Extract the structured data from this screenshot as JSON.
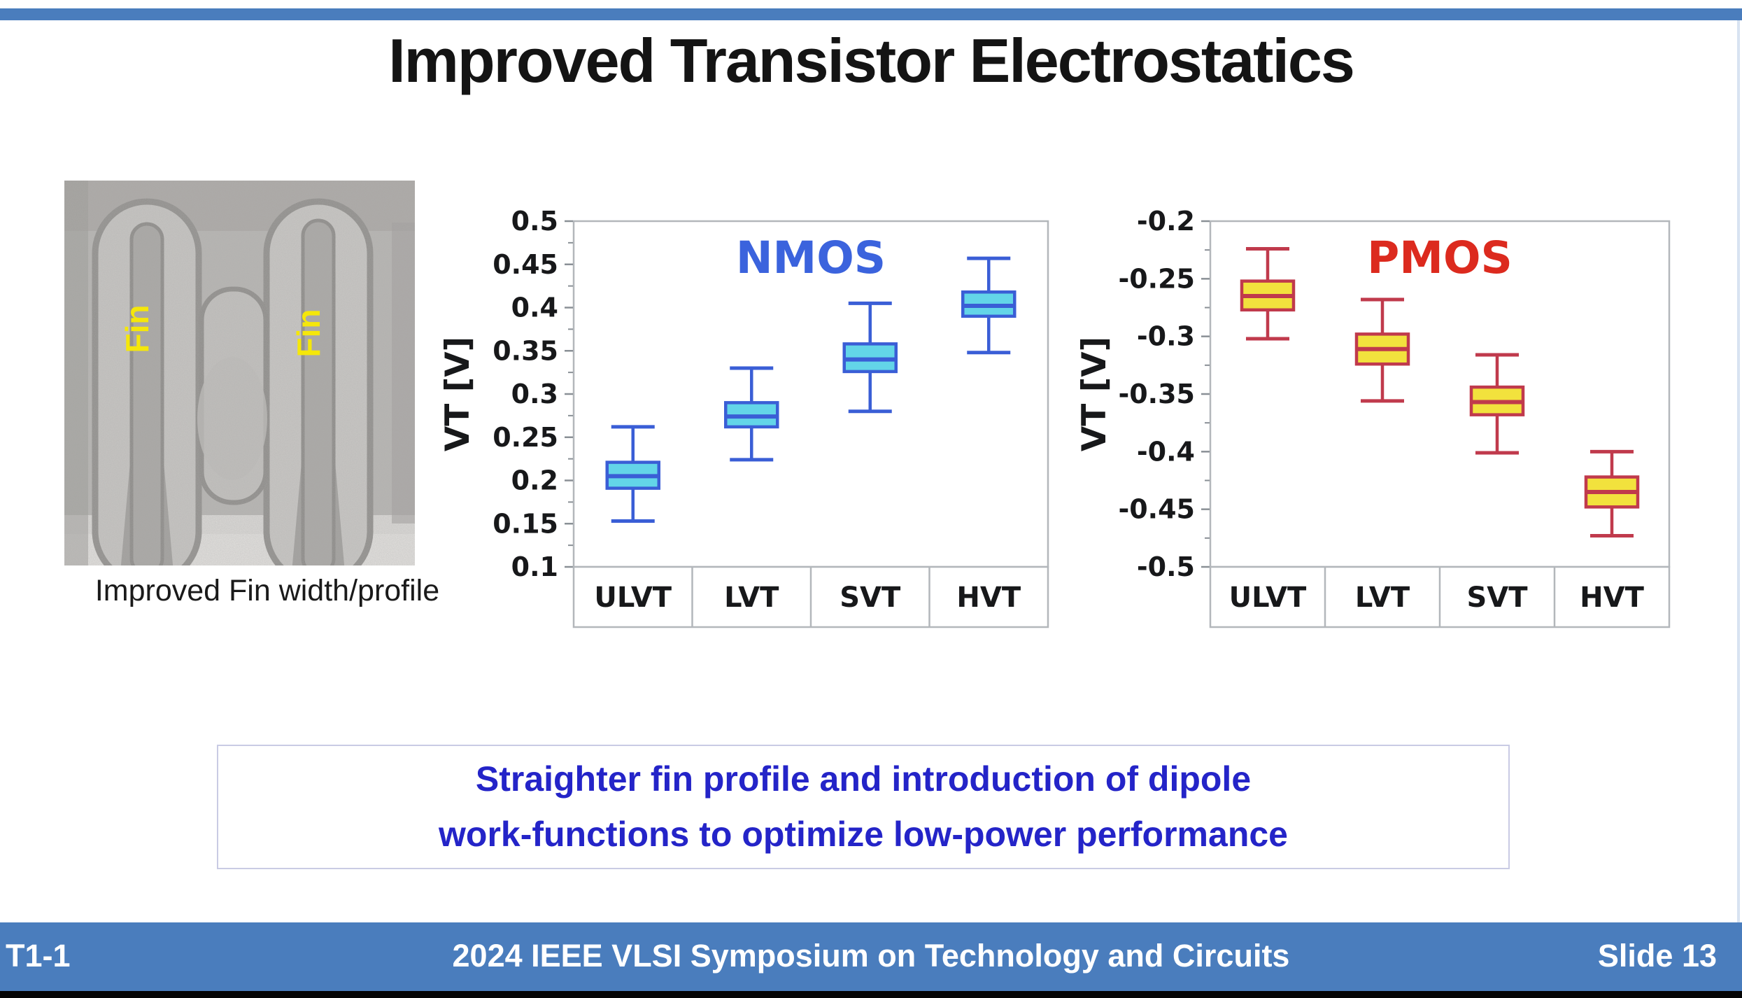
{
  "slide": {
    "title": "Improved Transistor Electrostatics",
    "footer": {
      "left": "T1-1",
      "center": "2024 IEEE VLSI Symposium on Technology and Circuits",
      "right": "Slide 13"
    },
    "message": {
      "line1": "Straighter fin profile and introduction of dipole",
      "line2": "work-functions to optimize low-power performance"
    }
  },
  "fin_figure": {
    "caption": "Improved Fin width/profile",
    "labels": [
      "Fin",
      "Fin"
    ]
  },
  "colors": {
    "accent_blue": "#4a7dbd",
    "bottom_strip": "#050505",
    "title_text": "#141414",
    "caption_text": "#1a1a1a",
    "message_text": "#2424c8",
    "message_border": "#c9cbe4",
    "fin_label_yellow": "#f5e70a",
    "nmos_box_fill": "#63d5e8",
    "nmos_box_stroke": "#3a5ed6",
    "nmos_title": "#3b63dd",
    "pmos_box_fill": "#f2e23d",
    "pmos_box_stroke": "#c03a4c",
    "pmos_title": "#dc2a1e",
    "chart_frame_gray": "#b3b7bb",
    "tick_text": "#17181a"
  },
  "chart_data": [
    {
      "type": "box",
      "title": "NMOS",
      "title_color": "#3b63dd",
      "ylabel": "VT [V]",
      "xlabel": "",
      "categories": [
        "ULVT",
        "LVT",
        "SVT",
        "HVT"
      ],
      "ylim": [
        0.1,
        0.5
      ],
      "grid": false,
      "legend": "none",
      "box_fill": "#63d5e8",
      "box_stroke": "#3a5ed6",
      "yticks": [
        {
          "value": 0.5,
          "label": "0.5"
        },
        {
          "value": 0.45,
          "label": "0.45"
        },
        {
          "value": 0.4,
          "label": "0.4"
        },
        {
          "value": 0.35,
          "label": "0.35"
        },
        {
          "value": 0.3,
          "label": "0.3"
        },
        {
          "value": 0.25,
          "label": "0.25"
        },
        {
          "value": 0.2,
          "label": "0.2"
        },
        {
          "value": 0.15,
          "label": "0.15"
        },
        {
          "value": 0.1,
          "label": "0.1"
        }
      ],
      "boxes": [
        {
          "category": "ULVT",
          "whisker_low": 0.153,
          "q1": 0.191,
          "median": 0.205,
          "q3": 0.221,
          "whisker_high": 0.262
        },
        {
          "category": "LVT",
          "whisker_low": 0.224,
          "q1": 0.262,
          "median": 0.274,
          "q3": 0.29,
          "whisker_high": 0.33
        },
        {
          "category": "SVT",
          "whisker_low": 0.28,
          "q1": 0.326,
          "median": 0.34,
          "q3": 0.358,
          "whisker_high": 0.405
        },
        {
          "category": "HVT",
          "whisker_low": 0.348,
          "q1": 0.39,
          "median": 0.402,
          "q3": 0.418,
          "whisker_high": 0.457
        }
      ]
    },
    {
      "type": "box",
      "title": "PMOS",
      "title_color": "#dc2a1e",
      "ylabel": "VT [V]",
      "xlabel": "",
      "categories": [
        "ULVT",
        "LVT",
        "SVT",
        "HVT"
      ],
      "ylim": [
        -0.5,
        -0.2
      ],
      "grid": false,
      "legend": "none",
      "box_fill": "#f2e23d",
      "box_stroke": "#c03a4c",
      "yticks": [
        {
          "value": -0.2,
          "label": "-0.2"
        },
        {
          "value": -0.25,
          "label": "-0.25"
        },
        {
          "value": -0.3,
          "label": "-0.3"
        },
        {
          "value": -0.35,
          "label": "-0.35"
        },
        {
          "value": -0.4,
          "label": "-0.4"
        },
        {
          "value": -0.45,
          "label": "-0.45"
        },
        {
          "value": -0.5,
          "label": "-0.5"
        }
      ],
      "boxes": [
        {
          "category": "ULVT",
          "whisker_low": -0.302,
          "q1": -0.277,
          "median": -0.265,
          "q3": -0.252,
          "whisker_high": -0.224
        },
        {
          "category": "LVT",
          "whisker_low": -0.356,
          "q1": -0.324,
          "median": -0.311,
          "q3": -0.298,
          "whisker_high": -0.268
        },
        {
          "category": "SVT",
          "whisker_low": -0.401,
          "q1": -0.368,
          "median": -0.357,
          "q3": -0.344,
          "whisker_high": -0.316
        },
        {
          "category": "HVT",
          "whisker_low": -0.473,
          "q1": -0.448,
          "median": -0.435,
          "q3": -0.422,
          "whisker_high": -0.4
        }
      ]
    }
  ]
}
